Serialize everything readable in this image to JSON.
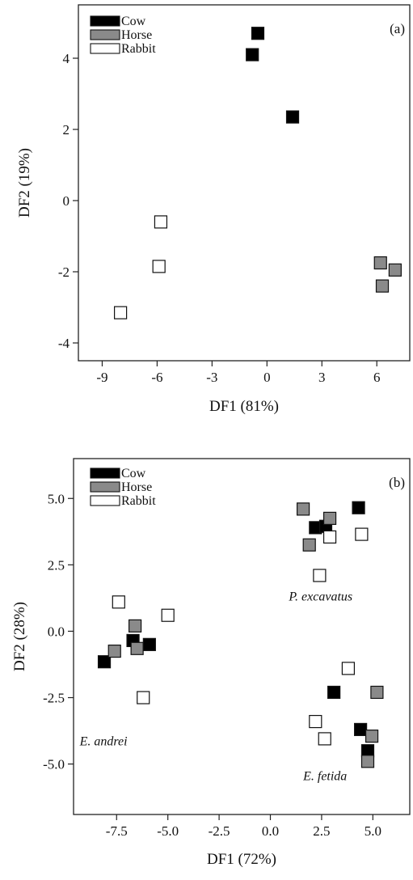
{
  "colors": {
    "Cow": "#000000",
    "Horse": "#8a8a8a",
    "Rabbit": "#ffffff"
  },
  "chart_data": [
    {
      "type": "scatter",
      "panel_label": "(a)",
      "xlabel": "DF1 (81%)",
      "ylabel": "DF2 (19%)",
      "xlim": [
        -10.3,
        7.8
      ],
      "ylim": [
        -4.5,
        5.5
      ],
      "xticks": [
        -9,
        -6,
        -3,
        0,
        3,
        6
      ],
      "yticks": [
        -4,
        -2,
        0,
        2,
        4
      ],
      "tick_labels_x": [
        "-9",
        "-6",
        "-3",
        "0",
        "3",
        "6"
      ],
      "tick_labels_y": [
        "-4",
        "-2",
        "0",
        "2",
        "4"
      ],
      "legend_position": "top-left",
      "series": [
        {
          "name": "Cow",
          "points": [
            [
              -0.5,
              4.7
            ],
            [
              -0.8,
              4.1
            ],
            [
              1.4,
              2.35
            ]
          ]
        },
        {
          "name": "Horse",
          "points": [
            [
              6.2,
              -1.75
            ],
            [
              7.0,
              -1.95
            ],
            [
              6.3,
              -2.4
            ]
          ]
        },
        {
          "name": "Rabbit",
          "points": [
            [
              -5.8,
              -0.6
            ],
            [
              -5.9,
              -1.85
            ],
            [
              -8.0,
              -3.15
            ]
          ]
        }
      ],
      "annotations": []
    },
    {
      "type": "scatter",
      "panel_label": "(b)",
      "xlabel": "DF1 (72%)",
      "ylabel": "DF2 (28%)",
      "xlim": [
        -9.6,
        6.8
      ],
      "ylim": [
        -6.9,
        6.5
      ],
      "xticks": [
        -7.5,
        -5.0,
        -2.5,
        0.0,
        2.5,
        5.0
      ],
      "yticks": [
        5.0,
        2.5,
        0.0,
        -2.5,
        -5.0
      ],
      "tick_labels_x": [
        "-7.5",
        "-5.0",
        "-2.5",
        "0.0",
        "2.5",
        "5.0"
      ],
      "tick_labels_y": [
        "5.0",
        "2.5",
        "0.0",
        "-2.5",
        "-5.0"
      ],
      "legend_position": "top-left",
      "series": [
        {
          "name": "Cow",
          "points": [
            [
              2.2,
              3.9
            ],
            [
              2.7,
              3.95
            ],
            [
              4.3,
              4.65
            ],
            [
              -8.1,
              -1.15
            ],
            [
              -6.7,
              -0.35
            ],
            [
              -5.9,
              -0.5
            ],
            [
              3.1,
              -2.3
            ],
            [
              4.4,
              -3.7
            ],
            [
              4.75,
              -4.5
            ]
          ]
        },
        {
          "name": "Horse",
          "points": [
            [
              1.6,
              4.6
            ],
            [
              2.9,
              4.25
            ],
            [
              1.9,
              3.25
            ],
            [
              -6.6,
              0.2
            ],
            [
              -7.6,
              -0.75
            ],
            [
              -6.5,
              -0.65
            ],
            [
              5.2,
              -2.3
            ],
            [
              4.95,
              -3.95
            ],
            [
              4.75,
              -4.9
            ]
          ]
        },
        {
          "name": "Rabbit",
          "points": [
            [
              2.9,
              3.55
            ],
            [
              4.45,
              3.65
            ],
            [
              2.4,
              2.1
            ],
            [
              -7.4,
              1.1
            ],
            [
              -5.0,
              0.6
            ],
            [
              -6.2,
              -2.5
            ],
            [
              3.8,
              -1.4
            ],
            [
              2.2,
              -3.4
            ],
            [
              2.65,
              -4.05
            ]
          ]
        }
      ],
      "annotations": [
        {
          "text": "P. excavatus",
          "x": 0.9,
          "y": 1.15
        },
        {
          "text": "E. andrei",
          "x": -9.3,
          "y": -4.3
        },
        {
          "text": "E. fetida",
          "x": 1.6,
          "y": -5.6
        }
      ]
    }
  ]
}
